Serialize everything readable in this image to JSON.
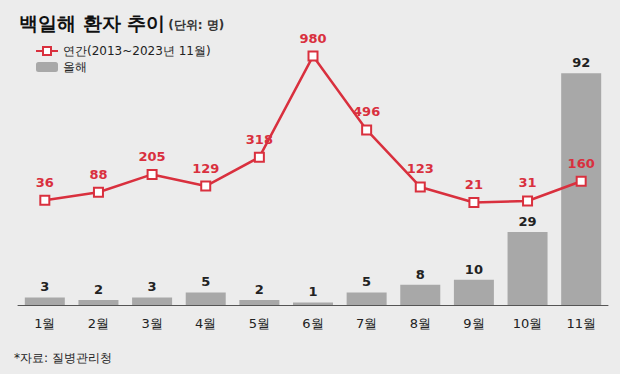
{
  "chart_data": {
    "type": "bar",
    "title": "백일해 환자 추이",
    "subtitle": "(단위: 명)",
    "source": "*자료: 질병관리청",
    "categories": [
      "1월",
      "2월",
      "3월",
      "4월",
      "5월",
      "6월",
      "7월",
      "8월",
      "9월",
      "10월",
      "11월"
    ],
    "series": [
      {
        "name": "연간(2013~2023년 11월)",
        "type": "line",
        "color": "#d9303e",
        "marker": "square",
        "axis": "y2",
        "values": [
          36,
          88,
          205,
          129,
          318,
          980,
          496,
          123,
          21,
          31,
          160
        ]
      },
      {
        "name": "올해",
        "type": "bar",
        "color": "#a8a8a8",
        "values": [
          3,
          2,
          3,
          5,
          2,
          1,
          5,
          8,
          10,
          29,
          92
        ]
      }
    ],
    "ylim": [
      0,
      100
    ],
    "y2lim": [
      -650,
      1000
    ],
    "data_labels": true,
    "tick_labels": "x",
    "grid": false,
    "legend": "upper left"
  }
}
